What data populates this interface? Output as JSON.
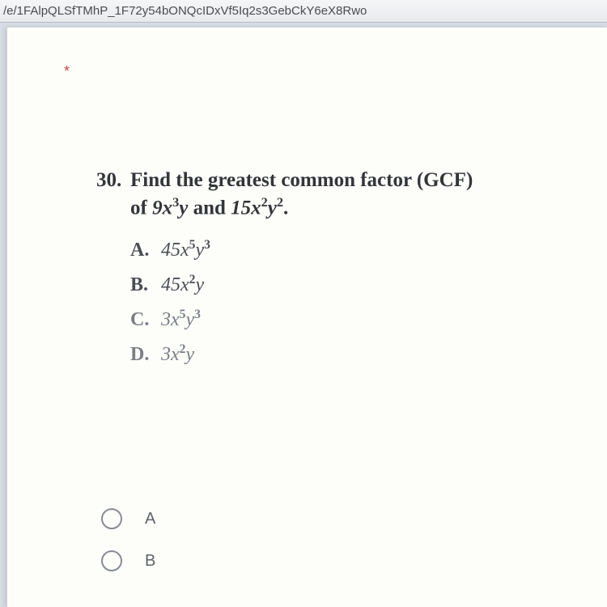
{
  "url_fragment": "/e/1FAlpQLSfTMhP_1F72y54bONQcIDxVf5Iq2s3GebCkY6eX8Rwo",
  "asterisk": "*",
  "question": {
    "number": "30.",
    "line1": "Find the greatest common factor (GCF)",
    "line2_prefix": "of ",
    "expr1_base1": "9x",
    "expr1_sup1": "3",
    "expr1_base2": "y",
    "mid": " and ",
    "expr2_base1": "15x",
    "expr2_sup1": "2",
    "expr2_base2": "y",
    "expr2_sup2": "2",
    "end": "."
  },
  "options": [
    {
      "letter": "A.",
      "b1": "45x",
      "s1": "5",
      "b2": "y",
      "s2": "3",
      "faded": false
    },
    {
      "letter": "B.",
      "b1": "45x",
      "s1": "2",
      "b2": "y",
      "s2": "",
      "faded": false
    },
    {
      "letter": "C.",
      "b1": "3x",
      "s1": "5",
      "b2": "y",
      "s2": "3",
      "faded": true
    },
    {
      "letter": "D.",
      "b1": "3x",
      "s1": "2",
      "b2": "y",
      "s2": "",
      "faded": true
    }
  ],
  "radios": [
    {
      "label": "A"
    },
    {
      "label": "B"
    }
  ],
  "colors": {
    "page_bg": "#fdfdfa",
    "body_bg": "#d8dde5",
    "text": "#333539",
    "faded_text": "#7a7e84",
    "asterisk": "#c94a4a",
    "radio_border": "#888c92"
  }
}
